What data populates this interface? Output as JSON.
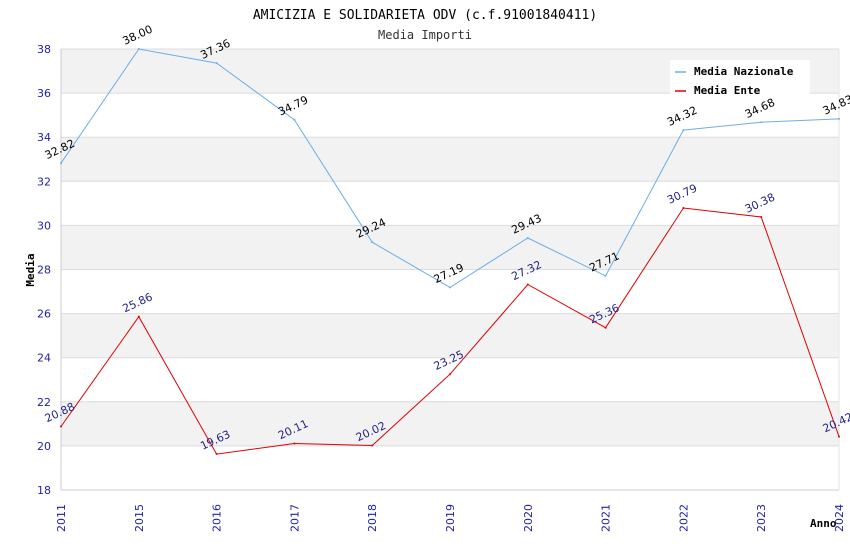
{
  "chart_data": {
    "type": "line",
    "title": "AMICIZIA E SOLIDARIETA ODV (c.f.91001840411)",
    "subtitle": "Media Importi",
    "xlabel": "Anno",
    "ylabel": "Media",
    "categories": [
      "2011",
      "2015",
      "2016",
      "2017",
      "2018",
      "2019",
      "2020",
      "2021",
      "2022",
      "2023",
      "2024"
    ],
    "ylim": [
      18,
      38
    ],
    "yticks": [
      18,
      20,
      22,
      24,
      26,
      28,
      30,
      32,
      34,
      36,
      38
    ],
    "grid": true,
    "legend_position": "top-right",
    "series": [
      {
        "name": "Media Nazionale",
        "color": "#6aaee8",
        "label_color": "#000000",
        "values": [
          32.82,
          38.0,
          37.36,
          34.79,
          29.24,
          27.19,
          29.43,
          27.71,
          34.32,
          34.68,
          34.83
        ],
        "labels": [
          "32.82",
          "38.00",
          "37.36",
          "34.79",
          "29.24",
          "27.19",
          "29.43",
          "27.71",
          "34.32",
          "34.68",
          "34.83"
        ]
      },
      {
        "name": "Media Ente",
        "color": "#e00000",
        "label_color": "#1f1f8a",
        "values": [
          20.88,
          25.86,
          19.63,
          20.11,
          20.02,
          23.25,
          27.32,
          25.36,
          30.79,
          30.38,
          20.42
        ],
        "labels": [
          "20.88",
          "25.86",
          "19.63",
          "20.11",
          "20.02",
          "23.25",
          "27.32",
          "25.36",
          "30.79",
          "30.38",
          "20.42"
        ]
      }
    ]
  }
}
